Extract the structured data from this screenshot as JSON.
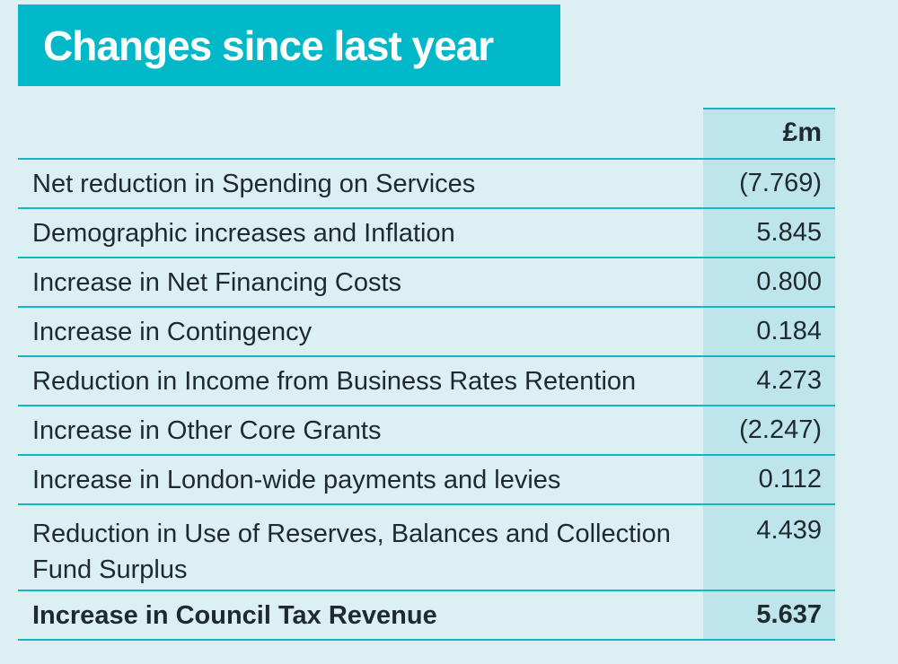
{
  "title": "Changes since last year",
  "table": {
    "unit_header": "£m",
    "rows": [
      {
        "label": "Net reduction in Spending on Services",
        "value": "(7.769)"
      },
      {
        "label": "Demographic increases and Inflation",
        "value": "5.845"
      },
      {
        "label": "Increase in Net Financing Costs",
        "value": "0.800"
      },
      {
        "label": "Increase in Contingency",
        "value": "0.184"
      },
      {
        "label": "Reduction in Income from Business Rates Retention",
        "value": "4.273"
      },
      {
        "label": "Increase in Other Core Grants",
        "value": "(2.247)"
      },
      {
        "label": "Increase in London-wide payments and levies",
        "value": "0.112"
      },
      {
        "label": "Reduction in Use of Reserves, Balances and Collection Fund Surplus",
        "value": "4.439"
      }
    ],
    "total": {
      "label": "Increase in Council Tax Revenue",
      "value": "5.637"
    }
  },
  "colors": {
    "title_bg": "#00b8c8",
    "page_bg": "#dcf0f4",
    "value_column_bg": "#bfe5ec",
    "rule": "#14b6c5"
  }
}
